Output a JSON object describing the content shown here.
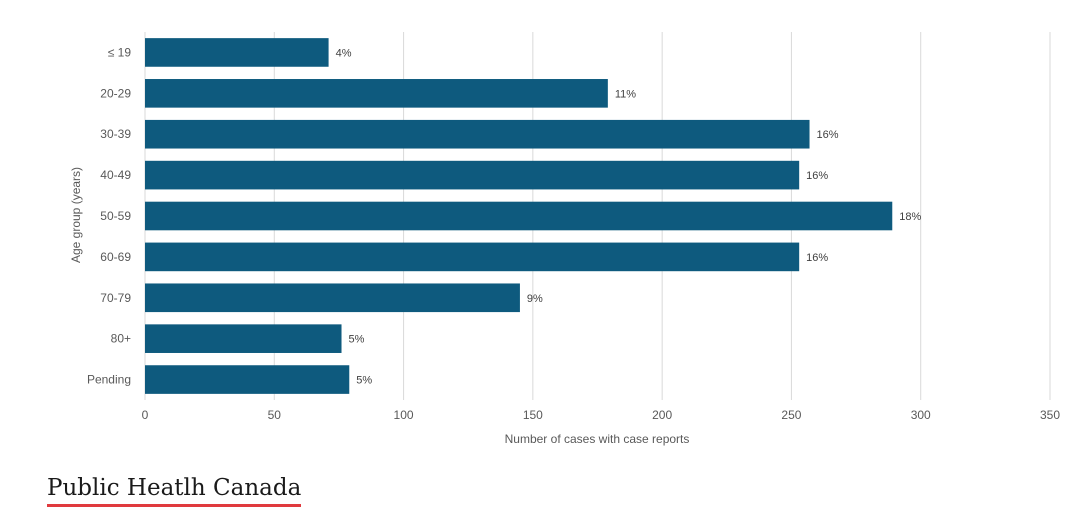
{
  "chart_data": {
    "type": "bar",
    "orientation": "horizontal",
    "categories": [
      "≤ 19",
      "20-29",
      "30-39",
      "40-49",
      "50-59",
      "60-69",
      "70-79",
      "80+",
      "Pending"
    ],
    "values": [
      71,
      179,
      257,
      253,
      289,
      253,
      145,
      76,
      79
    ],
    "data_labels": [
      "4%",
      "11%",
      "16%",
      "16%",
      "18%",
      "16%",
      "9%",
      "5%",
      "5%"
    ],
    "xlabel": "Number  of cases with case reports",
    "ylabel": "Age group (years)",
    "xlim": [
      0,
      350
    ],
    "xticks": [
      "0",
      "50",
      "100",
      "150",
      "200",
      "250",
      "300",
      "350"
    ],
    "grid": "vertical",
    "bar_color": "#0e5a7e"
  },
  "source": {
    "text": "Public Heatlh Canada"
  }
}
